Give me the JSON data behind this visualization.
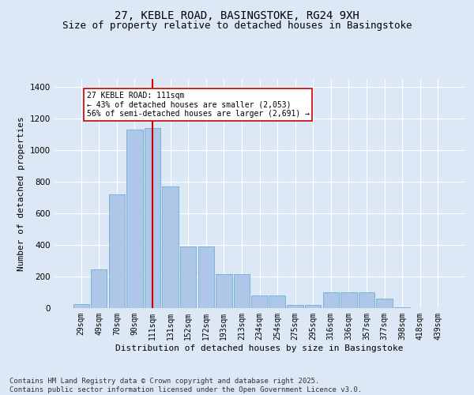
{
  "title_line1": "27, KEBLE ROAD, BASINGSTOKE, RG24 9XH",
  "title_line2": "Size of property relative to detached houses in Basingstoke",
  "xlabel": "Distribution of detached houses by size in Basingstoke",
  "ylabel": "Number of detached properties",
  "categories": [
    "29sqm",
    "49sqm",
    "70sqm",
    "90sqm",
    "111sqm",
    "131sqm",
    "152sqm",
    "172sqm",
    "193sqm",
    "213sqm",
    "234sqm",
    "254sqm",
    "275sqm",
    "295sqm",
    "316sqm",
    "336sqm",
    "357sqm",
    "377sqm",
    "398sqm",
    "418sqm",
    "439sqm"
  ],
  "values": [
    25,
    245,
    720,
    1130,
    1140,
    770,
    390,
    390,
    215,
    215,
    80,
    80,
    20,
    20,
    100,
    100,
    100,
    60,
    5,
    0,
    0
  ],
  "bar_color": "#aec6e8",
  "bar_edge_color": "#6baed6",
  "vline_x_index": 4,
  "vline_color": "#cc0000",
  "annotation_text": "27 KEBLE ROAD: 111sqm\n← 43% of detached houses are smaller (2,053)\n56% of semi-detached houses are larger (2,691) →",
  "annotation_box_color": "#ffffff",
  "annotation_box_edge_color": "#cc0000",
  "ylim": [
    0,
    1450
  ],
  "yticks": [
    0,
    200,
    400,
    600,
    800,
    1000,
    1200,
    1400
  ],
  "footnote": "Contains HM Land Registry data © Crown copyright and database right 2025.\nContains public sector information licensed under the Open Government Licence v3.0.",
  "bg_color": "#dce8f5",
  "plot_bg_color": "#dce8f5",
  "grid_color": "#ffffff",
  "title_fontsize": 10,
  "subtitle_fontsize": 9,
  "label_fontsize": 8,
  "footnote_fontsize": 6.5,
  "tick_fontsize": 7
}
